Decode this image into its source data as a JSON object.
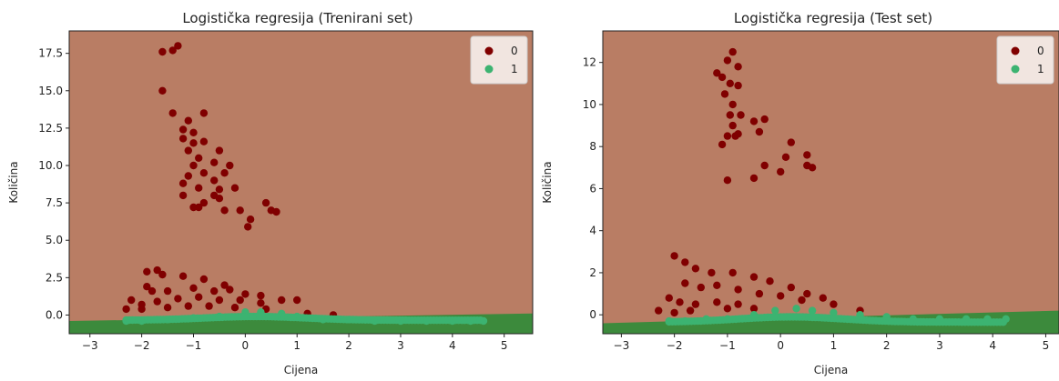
{
  "chart_data": [
    {
      "type": "scatter",
      "title": "Logistička regresija (Trenirani set)",
      "xlabel": "Cijena",
      "ylabel": "Količina",
      "xlim": [
        -3.4,
        5.55
      ],
      "ylim": [
        -1.25,
        19.0
      ],
      "xticks": [
        "−3",
        "−2",
        "−1",
        "0",
        "1",
        "2",
        "3",
        "4",
        "5"
      ],
      "xtick_values": [
        -3,
        -2,
        -1,
        0,
        1,
        2,
        3,
        4,
        5
      ],
      "yticks": [
        "0.0",
        "2.5",
        "5.0",
        "7.5",
        "10.0",
        "12.5",
        "15.0",
        "17.5"
      ],
      "ytick_values": [
        0,
        2.5,
        5,
        7.5,
        10,
        12.5,
        15,
        17.5
      ],
      "legend": {
        "position": "top-right",
        "entries": [
          "0",
          "1"
        ]
      },
      "regions": [
        {
          "class": "0",
          "color": "#b97d64"
        },
        {
          "class": "1",
          "color": "#3c8a3c",
          "boundary": [
            [
              -3.4,
              -0.4
            ],
            [
              5.55,
              0.1
            ]
          ]
        }
      ],
      "series": [
        {
          "name": "0",
          "color": "#800000",
          "points": [
            [
              -1.3,
              18.0
            ],
            [
              -1.6,
              17.6
            ],
            [
              -1.4,
              17.7
            ],
            [
              -1.6,
              15.0
            ],
            [
              -1.4,
              13.5
            ],
            [
              -0.8,
              13.5
            ],
            [
              -1.1,
              13.0
            ],
            [
              -1.2,
              12.4
            ],
            [
              -1.0,
              12.2
            ],
            [
              -1.2,
              11.8
            ],
            [
              -1.0,
              11.5
            ],
            [
              -0.5,
              11.0
            ],
            [
              -0.8,
              11.6
            ],
            [
              -1.1,
              11.0
            ],
            [
              -0.9,
              10.5
            ],
            [
              -1.0,
              10.0
            ],
            [
              -0.6,
              10.2
            ],
            [
              -0.3,
              10.0
            ],
            [
              -0.8,
              9.5
            ],
            [
              -1.1,
              9.3
            ],
            [
              -0.6,
              9.0
            ],
            [
              -0.4,
              9.5
            ],
            [
              -1.2,
              8.8
            ],
            [
              -0.9,
              8.5
            ],
            [
              -0.5,
              8.4
            ],
            [
              -0.2,
              8.5
            ],
            [
              -1.2,
              8.0
            ],
            [
              -0.8,
              7.5
            ],
            [
              -0.6,
              8.0
            ],
            [
              -1.0,
              7.2
            ],
            [
              -0.4,
              7.0
            ],
            [
              -0.1,
              7.0
            ],
            [
              0.4,
              7.5
            ],
            [
              0.5,
              7.0
            ],
            [
              0.6,
              6.9
            ],
            [
              0.1,
              6.4
            ],
            [
              0.05,
              5.9
            ],
            [
              -0.9,
              7.2
            ],
            [
              -0.5,
              7.8
            ],
            [
              -1.7,
              3.0
            ],
            [
              -1.9,
              2.9
            ],
            [
              -1.6,
              2.7
            ],
            [
              -1.2,
              2.6
            ],
            [
              -0.8,
              2.4
            ],
            [
              -0.4,
              2.0
            ],
            [
              -1.9,
              1.9
            ],
            [
              -1.8,
              1.6
            ],
            [
              -1.5,
              1.6
            ],
            [
              -1.0,
              1.8
            ],
            [
              -0.6,
              1.6
            ],
            [
              -0.3,
              1.7
            ],
            [
              0.0,
              1.4
            ],
            [
              0.3,
              1.3
            ],
            [
              0.7,
              1.0
            ],
            [
              1.0,
              1.0
            ],
            [
              -2.2,
              1.0
            ],
            [
              -2.0,
              0.7
            ],
            [
              -1.7,
              0.9
            ],
            [
              -1.3,
              1.1
            ],
            [
              -0.9,
              1.2
            ],
            [
              -0.5,
              1.0
            ],
            [
              -0.1,
              1.0
            ],
            [
              0.3,
              0.8
            ],
            [
              -2.3,
              0.4
            ],
            [
              -2.0,
              0.4
            ],
            [
              -1.5,
              0.5
            ],
            [
              -1.1,
              0.6
            ],
            [
              -0.7,
              0.6
            ],
            [
              -0.2,
              0.5
            ],
            [
              0.4,
              0.4
            ],
            [
              1.2,
              0.1
            ],
            [
              1.7,
              0.0
            ]
          ]
        },
        {
          "name": "1",
          "color": "#3cb371",
          "points": [
            [
              -2.3,
              -0.4
            ],
            [
              -2.0,
              -0.4
            ],
            [
              -1.5,
              -0.3
            ],
            [
              -1.0,
              -0.2
            ],
            [
              -0.5,
              -0.1
            ],
            [
              0.0,
              0.2
            ],
            [
              0.3,
              0.2
            ],
            [
              0.7,
              0.1
            ],
            [
              1.0,
              -0.1
            ],
            [
              1.5,
              -0.3
            ],
            [
              2.0,
              -0.3
            ],
            [
              2.5,
              -0.4
            ],
            [
              3.0,
              -0.4
            ],
            [
              3.5,
              -0.4
            ],
            [
              4.0,
              -0.4
            ],
            [
              4.35,
              -0.4
            ],
            [
              4.6,
              -0.4
            ]
          ]
        }
      ]
    },
    {
      "type": "scatter",
      "title": "Logistička regresija (Test set)",
      "xlabel": "Cijena",
      "ylabel": "Količina",
      "xlim": [
        -3.35,
        5.25
      ],
      "ylim": [
        -0.9,
        13.5
      ],
      "xticks": [
        "−3",
        "−2",
        "−1",
        "0",
        "1",
        "2",
        "3",
        "4",
        "5"
      ],
      "xtick_values": [
        -3,
        -2,
        -1,
        0,
        1,
        2,
        3,
        4,
        5
      ],
      "yticks": [
        "0",
        "2",
        "4",
        "6",
        "8",
        "10",
        "12"
      ],
      "ytick_values": [
        0,
        2,
        4,
        6,
        8,
        10,
        12
      ],
      "legend": {
        "position": "top-right",
        "entries": [
          "0",
          "1"
        ]
      },
      "regions": [
        {
          "class": "0",
          "color": "#b97d64"
        },
        {
          "class": "1",
          "color": "#3c8a3c",
          "boundary": [
            [
              -3.35,
              -0.4
            ],
            [
              5.25,
              0.2
            ]
          ]
        }
      ],
      "series": [
        {
          "name": "0",
          "color": "#800000",
          "points": [
            [
              -0.9,
              12.5
            ],
            [
              -1.0,
              12.1
            ],
            [
              -0.8,
              11.8
            ],
            [
              -1.2,
              11.5
            ],
            [
              -0.95,
              11.0
            ],
            [
              -1.1,
              11.3
            ],
            [
              -0.8,
              10.9
            ],
            [
              -1.05,
              10.5
            ],
            [
              -0.9,
              10.0
            ],
            [
              -0.95,
              9.5
            ],
            [
              -0.75,
              9.5
            ],
            [
              -0.5,
              9.2
            ],
            [
              -0.3,
              9.3
            ],
            [
              -0.9,
              9.0
            ],
            [
              -0.8,
              8.6
            ],
            [
              -0.4,
              8.7
            ],
            [
              -1.0,
              8.5
            ],
            [
              -1.1,
              8.1
            ],
            [
              -0.85,
              8.5
            ],
            [
              0.2,
              8.2
            ],
            [
              0.5,
              7.6
            ],
            [
              0.1,
              7.5
            ],
            [
              -0.3,
              7.1
            ],
            [
              0.5,
              7.1
            ],
            [
              0.6,
              7.0
            ],
            [
              0.0,
              6.8
            ],
            [
              -0.5,
              6.5
            ],
            [
              -1.0,
              6.4
            ],
            [
              -2.0,
              2.8
            ],
            [
              -1.8,
              2.5
            ],
            [
              -1.6,
              2.2
            ],
            [
              -1.3,
              2.0
            ],
            [
              -0.9,
              2.0
            ],
            [
              -0.5,
              1.8
            ],
            [
              -0.2,
              1.6
            ],
            [
              0.2,
              1.3
            ],
            [
              0.5,
              1.0
            ],
            [
              0.8,
              0.8
            ],
            [
              -1.8,
              1.5
            ],
            [
              -1.5,
              1.3
            ],
            [
              -1.2,
              1.4
            ],
            [
              -0.8,
              1.2
            ],
            [
              -0.4,
              1.0
            ],
            [
              0.0,
              0.9
            ],
            [
              0.4,
              0.7
            ],
            [
              1.0,
              0.5
            ],
            [
              -2.1,
              0.8
            ],
            [
              -1.9,
              0.6
            ],
            [
              -1.6,
              0.5
            ],
            [
              -1.2,
              0.6
            ],
            [
              -0.8,
              0.5
            ],
            [
              -2.3,
              0.2
            ],
            [
              -2.0,
              0.1
            ],
            [
              -1.7,
              0.2
            ],
            [
              -1.0,
              0.3
            ],
            [
              -0.5,
              0.3
            ],
            [
              1.5,
              0.2
            ]
          ]
        },
        {
          "name": "1",
          "color": "#3cb371",
          "points": [
            [
              -2.1,
              -0.3
            ],
            [
              -1.8,
              -0.3
            ],
            [
              -1.4,
              -0.2
            ],
            [
              -1.0,
              -0.2
            ],
            [
              -0.5,
              0.0
            ],
            [
              -0.1,
              0.2
            ],
            [
              0.3,
              0.3
            ],
            [
              0.6,
              0.2
            ],
            [
              1.0,
              0.1
            ],
            [
              1.5,
              0.0
            ],
            [
              2.0,
              -0.1
            ],
            [
              2.5,
              -0.2
            ],
            [
              3.0,
              -0.2
            ],
            [
              3.5,
              -0.2
            ],
            [
              3.9,
              -0.2
            ],
            [
              4.25,
              -0.2
            ]
          ]
        }
      ]
    }
  ]
}
